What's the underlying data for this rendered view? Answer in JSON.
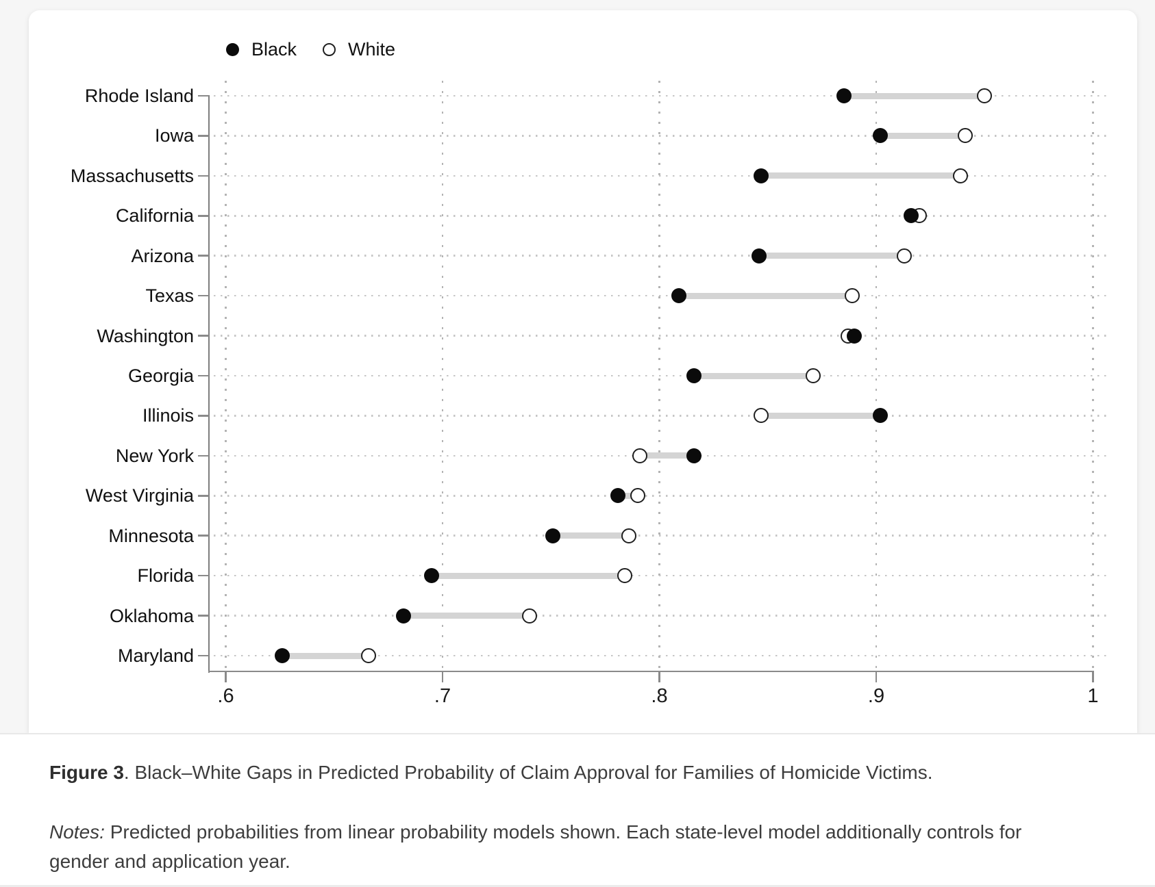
{
  "caption": {
    "label": "Figure 3",
    "text": ". Black–White Gaps in Predicted Probability of Claim Approval for Families of Homicide Victims."
  },
  "notes": {
    "label": "Notes:",
    "lines": [
      "Predicted probabilities from linear probability models shown. Each state-level model additionally controls for",
      "gender and application year."
    ]
  },
  "chart_data": {
    "type": "scatter",
    "subtype": "dumbbell-dot-plot",
    "title": "",
    "xlabel": "",
    "ylabel": "",
    "xlim": [
      0.6,
      1.0
    ],
    "x_ticks": [
      ".6",
      ".7",
      ".8",
      ".9",
      "1"
    ],
    "x_tick_values": [
      0.6,
      0.7,
      0.8,
      0.9,
      1.0
    ],
    "grid": "dotted",
    "legend_position": "top",
    "categories": [
      "Rhode Island",
      "Iowa",
      "Massachusetts",
      "California",
      "Arizona",
      "Texas",
      "Washington",
      "Georgia",
      "Illinois",
      "New York",
      "West Virginia",
      "Minnesota",
      "Florida",
      "Oklahoma",
      "Maryland"
    ],
    "series": [
      {
        "name": "Black",
        "marker": "filled-circle",
        "color": "#0b0b0b",
        "values": [
          0.885,
          0.902,
          0.847,
          0.916,
          0.846,
          0.809,
          0.89,
          0.816,
          0.902,
          0.816,
          0.781,
          0.751,
          0.695,
          0.682,
          0.626
        ]
      },
      {
        "name": "White",
        "marker": "open-circle",
        "color": "#ffffff",
        "values": [
          0.95,
          0.941,
          0.939,
          0.92,
          0.913,
          0.889,
          0.887,
          0.871,
          0.847,
          0.791,
          0.79,
          0.786,
          0.784,
          0.74,
          0.666
        ]
      }
    ],
    "connector_color": "#d4d4d4",
    "marker_stroke_color": "#1f1f1f"
  }
}
